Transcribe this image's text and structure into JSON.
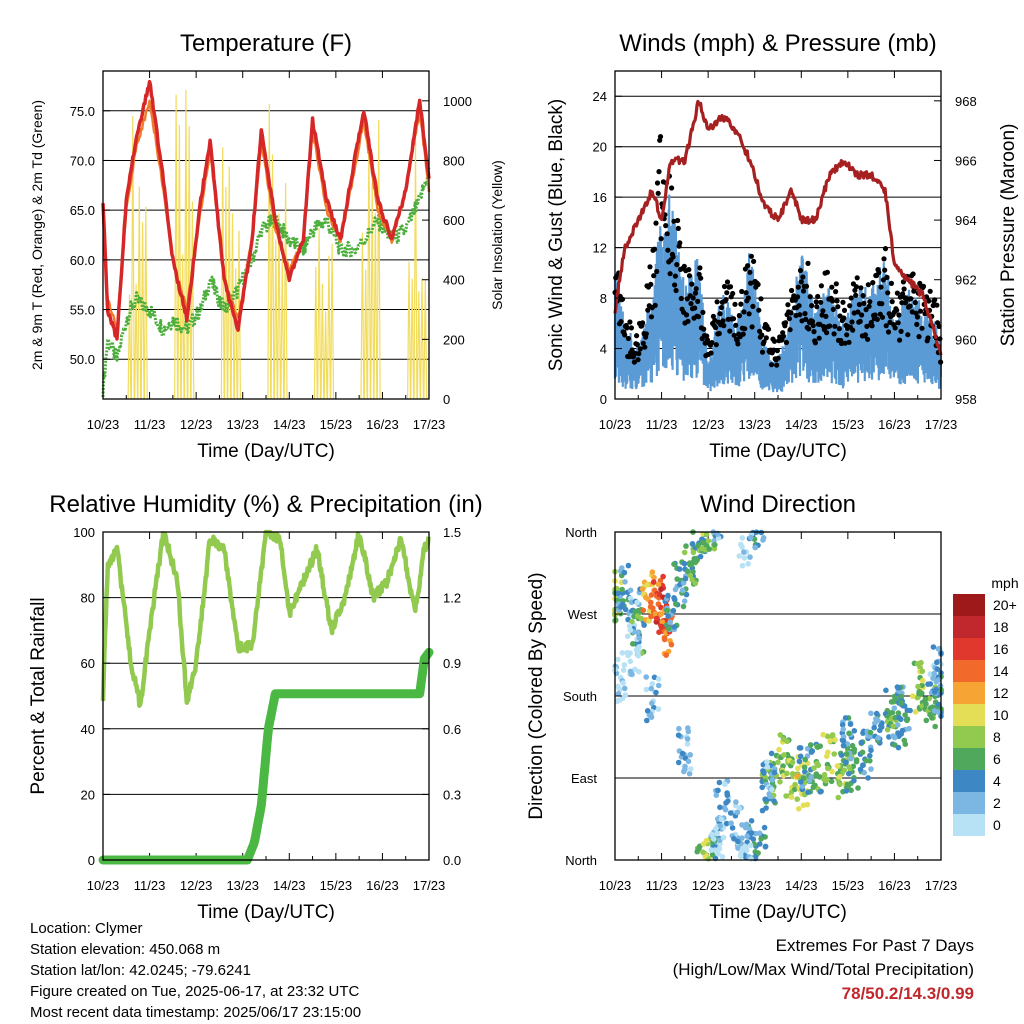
{
  "x_tick_labels": [
    "10/23",
    "11/23",
    "12/23",
    "13/23",
    "14/23",
    "15/23",
    "16/23",
    "17/23"
  ],
  "x_axis_label": "Time (Day/UTC)",
  "info": {
    "location": "Location: Clymer",
    "elevation": "Station elevation: 450.068 m",
    "latlon": "Station lat/lon: 42.0245; -79.6241",
    "created": "Figure created on Tue, 2025-06-17, at 23:32 UTC",
    "timestamp": "Most recent data timestamp: 2025/06/17 23:15:00"
  },
  "extremes": {
    "line1": "Extremes For Past 7 Days",
    "line2": "(High/Low/Max Wind/Total Precipitation)",
    "values": "78/50.2/14.3/0.99"
  },
  "chart_data": [
    {
      "type": "line",
      "title": "Temperature (F)",
      "xlabel": "Time (Day/UTC)",
      "ylabel": "2m & 9m T (Red, Orange) & 2m Td (Green)",
      "ylabel_right": "Solar Insolation (Yellow)",
      "ylim": [
        46,
        79
      ],
      "ylim_right": [
        0,
        1100
      ],
      "yticks": [
        "50.0",
        "55.0",
        "60.0",
        "65.0",
        "70.0",
        "75.0"
      ],
      "yticks_right": [
        "0",
        "200",
        "400",
        "600",
        "800",
        "1000"
      ],
      "x_days": [
        0,
        0.1,
        0.3,
        0.5,
        0.7,
        1.0,
        1.3,
        1.5,
        1.8,
        2.1,
        2.3,
        2.6,
        2.9,
        3.2,
        3.4,
        3.7,
        4.0,
        4.3,
        4.5,
        4.8,
        5.1,
        5.4,
        5.6,
        5.9,
        6.2,
        6.5,
        6.8,
        7.0
      ],
      "series": [
        {
          "color": "#d62728",
          "values": [
            66,
            55,
            52,
            66,
            72,
            78,
            68,
            60,
            54,
            66,
            72,
            58,
            53,
            62,
            73,
            64,
            58,
            62,
            74,
            66,
            62,
            70,
            75,
            66,
            62,
            67,
            76,
            68
          ]
        },
        {
          "color": "#f07b2a",
          "values": [
            65,
            56,
            53,
            65,
            71,
            76,
            67,
            60,
            55,
            65,
            71,
            58,
            54,
            62,
            72,
            63,
            59,
            62,
            73,
            65,
            62,
            69,
            74,
            65,
            62,
            67,
            75,
            67
          ]
        },
        {
          "color": "#4cae3c",
          "values": [
            47,
            52,
            50,
            54,
            56,
            55,
            53,
            54,
            53,
            55,
            58,
            55,
            57,
            60,
            63,
            64,
            62,
            61,
            63,
            64,
            61,
            61,
            62,
            64,
            62,
            63,
            66,
            69
          ]
        }
      ],
      "insolation": {
        "color": "#f2dc5d",
        "peaks": [
          0.75,
          1.75,
          2.75,
          3.75,
          4.75,
          5.75,
          6.75
        ],
        "values": [
          1000,
          1040,
          1000,
          1000,
          600,
          1020,
          1000
        ]
      }
    },
    {
      "type": "line",
      "title": "Winds (mph) & Pressure (mb)",
      "xlabel": "Time (Day/UTC)",
      "ylabel": "Sonic Wind & Gust (Blue, Black)",
      "ylabel_right": "Station Pressure (Maroon)",
      "ylim": [
        0,
        26
      ],
      "ylim_right": [
        958,
        969
      ],
      "yticks": [
        "0",
        "4",
        "8",
        "12",
        "16",
        "20",
        "24"
      ],
      "yticks_right": [
        "958",
        "960",
        "962",
        "964",
        "966",
        "968"
      ],
      "x_days": [
        0,
        0.2,
        0.5,
        0.8,
        1.0,
        1.2,
        1.5,
        1.8,
        2.0,
        2.3,
        2.6,
        2.9,
        3.2,
        3.5,
        3.8,
        4.0,
        4.3,
        4.6,
        4.9,
        5.2,
        5.5,
        5.8,
        6.0,
        6.3,
        6.6,
        6.9,
        7.0
      ],
      "series": [
        {
          "color": "#5b9bd5",
          "values": [
            8,
            4,
            3,
            6,
            10,
            11,
            6,
            8,
            2,
            6,
            4,
            8,
            3,
            2,
            5,
            8,
            5,
            6,
            4,
            6,
            6,
            8,
            4,
            6,
            5,
            4,
            3
          ]
        },
        {
          "color": "#000000",
          "values": [
            13,
            6,
            5,
            10,
            20,
            16,
            9,
            11,
            4,
            9,
            7,
            11,
            6,
            4,
            8,
            11,
            8,
            9,
            7,
            9,
            8,
            11,
            7,
            9,
            8,
            7,
            5
          ]
        },
        {
          "color": "#a52020",
          "values": [
            961,
            963,
            964,
            965,
            964,
            966,
            966,
            968,
            967,
            967.5,
            967,
            966,
            964.5,
            964,
            965,
            964,
            964,
            965.5,
            966,
            965.5,
            965.5,
            965,
            962.5,
            962,
            961.5,
            960,
            959.5
          ]
        }
      ]
    },
    {
      "type": "line",
      "title": "Relative Humidity (%) & Precipitation (in)",
      "xlabel": "Time (Day/UTC)",
      "ylabel": "Percent & Total Rainfall",
      "ylim": [
        0,
        100
      ],
      "ylim_right": [
        0,
        1.5
      ],
      "yticks": [
        "0",
        "20",
        "40",
        "60",
        "80",
        "100"
      ],
      "yticks_right": [
        "0.0",
        "0.3",
        "0.6",
        "0.9",
        "1.2",
        "1.5"
      ],
      "x_days": [
        0,
        0.1,
        0.3,
        0.6,
        0.8,
        1.0,
        1.3,
        1.6,
        1.8,
        2.0,
        2.3,
        2.6,
        2.9,
        3.2,
        3.5,
        3.8,
        4.0,
        4.3,
        4.6,
        4.9,
        5.2,
        5.5,
        5.8,
        6.1,
        6.4,
        6.7,
        6.9,
        7.0
      ],
      "series": [
        {
          "color": "#92c94f",
          "values": [
            50,
            90,
            95,
            60,
            47,
            70,
            100,
            85,
            48,
            60,
            98,
            95,
            65,
            65,
            100,
            98,
            75,
            85,
            95,
            70,
            80,
            100,
            80,
            85,
            98,
            75,
            95,
            98
          ]
        },
        {
          "color": "#4cb844",
          "x_days": [
            0,
            3.1,
            3.25,
            3.4,
            3.55,
            3.7,
            6.8,
            6.9,
            7.0
          ],
          "values": [
            0,
            0,
            0.08,
            0.25,
            0.6,
            0.76,
            0.76,
            0.92,
            0.95
          ]
        }
      ]
    },
    {
      "type": "scatter",
      "title": "Wind Direction",
      "xlabel": "Time (Day/UTC)",
      "ylabel": "Direction (Colored By Speed)",
      "yticks": [
        "North",
        "East",
        "South",
        "West",
        "North"
      ],
      "legend_title": "mph",
      "legend_labels": [
        "20+",
        "18",
        "16",
        "14",
        "12",
        "10",
        "8",
        "6",
        "4",
        "2",
        "0"
      ],
      "legend_colors": [
        "#9e1a1a",
        "#c0282d",
        "#e0382d",
        "#f26a2b",
        "#f6a535",
        "#e3de56",
        "#92c94f",
        "#4fa85c",
        "#3d88c4",
        "#7bb7e2",
        "#b7e1f4"
      ],
      "clusters": [
        {
          "x_days": [
            0.0,
            0.2,
            0.4,
            0.5,
            0.7,
            0.9,
            1.0,
            1.1
          ],
          "dir": [
            290,
            300,
            270,
            250,
            290,
            285,
            270,
            250
          ],
          "speed": [
            8,
            4,
            2,
            6,
            12,
            14,
            16,
            14
          ]
        },
        {
          "x_days": [
            1.2,
            1.4,
            1.6,
            1.8,
            2.0,
            2.2
          ],
          "dir": [
            280,
            300,
            330,
            350,
            360,
            10
          ],
          "speed": [
            4,
            4,
            6,
            6,
            8,
            4
          ]
        },
        {
          "x_days": [
            2.3,
            2.6,
            2.9,
            3.1,
            3.3,
            3.6
          ],
          "dir": [
            60,
            40,
            20,
            10,
            80,
            110
          ],
          "speed": [
            2,
            2,
            4,
            4,
            6,
            8
          ]
        },
        {
          "x_days": [
            3.8,
            4.0,
            4.3,
            4.6,
            4.9,
            5.1,
            5.4
          ],
          "dir": [
            90,
            80,
            100,
            110,
            95,
            100,
            115
          ],
          "speed": [
            8,
            10,
            6,
            8,
            8,
            6,
            4
          ]
        },
        {
          "x_days": [
            5.6,
            5.9,
            6.2,
            6.5,
            6.8,
            7.0
          ],
          "dir": [
            140,
            160,
            170,
            190,
            170,
            180
          ],
          "speed": [
            4,
            6,
            4,
            8,
            6,
            4
          ]
        },
        {
          "x_days": [
            0.1,
            0.4,
            0.8,
            1.5,
            2.2,
            2.8,
            3.3,
            4.1,
            5.0,
            6.1,
            6.9
          ],
          "dir": [
            200,
            230,
            180,
            120,
            20,
            350,
            90,
            100,
            130,
            150,
            210
          ],
          "speed": [
            0,
            0,
            2,
            2,
            0,
            0,
            2,
            4,
            4,
            4,
            2
          ]
        }
      ]
    }
  ]
}
